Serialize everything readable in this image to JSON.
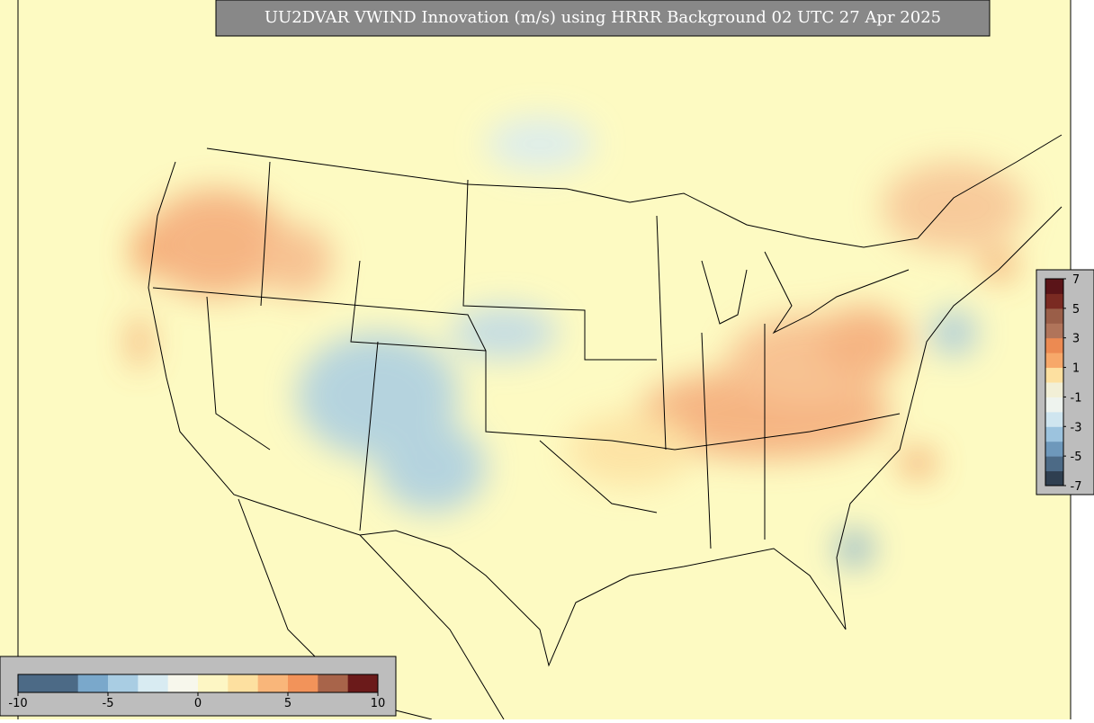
{
  "title": "UU2DVAR VWIND Innovation (m/s) using HRRR Background 02 UTC 27 Apr 2025",
  "colorbar_horizontal": {
    "lim": [
      -10,
      10
    ],
    "ticks": [
      -10,
      -5,
      0,
      5,
      10
    ],
    "colors": [
      "#4c6a86",
      "#4c6a86",
      "#7aa8cb",
      "#a9cde3",
      "#d8ebf2",
      "#f7f7ec",
      "#fdf6c4",
      "#fde0a0",
      "#f9b67a",
      "#f2935a",
      "#a8644a",
      "#6b1a1a"
    ]
  },
  "colorbar_vertical": {
    "lim": [
      -7,
      7
    ],
    "ticks": [
      7,
      5,
      3,
      1,
      -1,
      -3,
      -5,
      -7
    ],
    "colors": [
      "#2f3f50",
      "#4c6a86",
      "#6e98bb",
      "#9cc3de",
      "#cfe5ef",
      "#eef3ee",
      "#f2efd6",
      "#fde0a0",
      "#f7a86a",
      "#ec8a52",
      "#b0745a",
      "#9a5e48",
      "#7a2a22",
      "#5a1418"
    ]
  }
}
